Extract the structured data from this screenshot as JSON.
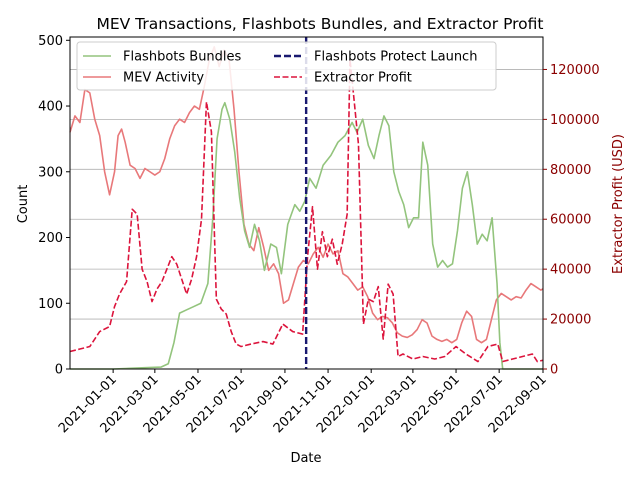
{
  "chart_data": {
    "type": "line",
    "title": "MEV Transactions, Flashbots Bundles, and Extractor Profit",
    "xlabel": "Date",
    "ylabel_left": "Count",
    "ylabel_right": "Extractor Profit (USD)",
    "xlim": [
      "2020-11-01",
      "2022-09-01"
    ],
    "ylim_left": [
      0,
      505
    ],
    "ylim_right": [
      0,
      133000
    ],
    "x_ticks": [
      "2021-01-01",
      "2021-03-01",
      "2021-05-01",
      "2021-07-01",
      "2021-09-01",
      "2021-11-01",
      "2022-01-01",
      "2022-03-01",
      "2022-05-01",
      "2022-07-01",
      "2022-09-01"
    ],
    "y_ticks_left": [
      "0",
      "100",
      "200",
      "300",
      "400",
      "500"
    ],
    "y_ticks_right": [
      "0",
      "20000",
      "40000",
      "60000",
      "80000",
      "100000",
      "120000"
    ],
    "grid": "horizontal lines at right-axis ticks",
    "legend_position": "top-left",
    "legend_columns": 2,
    "colors": {
      "flashbots_bundles": "#93c47d",
      "mev_activity": "#e8787a",
      "extractor_profit": "#dc143c",
      "launch_line": "#191970",
      "right_axis": "#8b0000",
      "grid": "#b0b0b0"
    },
    "annotations": [
      {
        "type": "vline",
        "name": "Flashbots Protect Launch",
        "x": "2021-10-01",
        "style": "dashed"
      }
    ],
    "series": [
      {
        "name": "Flashbots Bundles",
        "axis": "left",
        "style": "solid",
        "points": [
          [
            "2020-11-01",
            0
          ],
          [
            "2021-01-01",
            0
          ],
          [
            "2021-02-15",
            2
          ],
          [
            "2021-03-10",
            3
          ],
          [
            "2021-03-20",
            8
          ],
          [
            "2021-03-28",
            40
          ],
          [
            "2021-04-05",
            85
          ],
          [
            "2021-04-15",
            90
          ],
          [
            "2021-04-25",
            95
          ],
          [
            "2021-05-05",
            100
          ],
          [
            "2021-05-15",
            130
          ],
          [
            "2021-05-22",
            230
          ],
          [
            "2021-05-28",
            350
          ],
          [
            "2021-06-04",
            395
          ],
          [
            "2021-06-08",
            405
          ],
          [
            "2021-06-15",
            380
          ],
          [
            "2021-06-22",
            330
          ],
          [
            "2021-06-29",
            260
          ],
          [
            "2021-07-06",
            210
          ],
          [
            "2021-07-13",
            185
          ],
          [
            "2021-07-20",
            220
          ],
          [
            "2021-07-27",
            195
          ],
          [
            "2021-08-03",
            150
          ],
          [
            "2021-08-12",
            190
          ],
          [
            "2021-08-20",
            185
          ],
          [
            "2021-08-27",
            145
          ],
          [
            "2021-09-05",
            220
          ],
          [
            "2021-09-15",
            250
          ],
          [
            "2021-09-22",
            240
          ],
          [
            "2021-09-29",
            255
          ],
          [
            "2021-10-06",
            290
          ],
          [
            "2021-10-15",
            275
          ],
          [
            "2021-10-25",
            310
          ],
          [
            "2021-11-05",
            325
          ],
          [
            "2021-11-15",
            345
          ],
          [
            "2021-11-25",
            355
          ],
          [
            "2021-12-05",
            375
          ],
          [
            "2021-12-12",
            360
          ],
          [
            "2021-12-20",
            380
          ],
          [
            "2021-12-28",
            340
          ],
          [
            "2022-01-05",
            320
          ],
          [
            "2022-01-12",
            355
          ],
          [
            "2022-01-19",
            385
          ],
          [
            "2022-01-26",
            370
          ],
          [
            "2022-02-02",
            300
          ],
          [
            "2022-02-09",
            270
          ],
          [
            "2022-02-16",
            250
          ],
          [
            "2022-02-23",
            215
          ],
          [
            "2022-03-02",
            230
          ],
          [
            "2022-03-09",
            230
          ],
          [
            "2022-03-15",
            345
          ],
          [
            "2022-03-22",
            310
          ],
          [
            "2022-03-29",
            190
          ],
          [
            "2022-04-05",
            155
          ],
          [
            "2022-04-12",
            165
          ],
          [
            "2022-04-19",
            155
          ],
          [
            "2022-04-26",
            160
          ],
          [
            "2022-05-03",
            210
          ],
          [
            "2022-05-10",
            275
          ],
          [
            "2022-05-17",
            300
          ],
          [
            "2022-05-24",
            250
          ],
          [
            "2022-05-31",
            190
          ],
          [
            "2022-06-07",
            205
          ],
          [
            "2022-06-14",
            195
          ],
          [
            "2022-06-21",
            230
          ],
          [
            "2022-06-28",
            130
          ],
          [
            "2022-07-02",
            40
          ],
          [
            "2022-07-06",
            0
          ],
          [
            "2022-09-01",
            0
          ]
        ]
      },
      {
        "name": "MEV Activity",
        "axis": "left",
        "style": "solid",
        "points": [
          [
            "2020-11-01",
            360
          ],
          [
            "2020-11-08",
            385
          ],
          [
            "2020-11-15",
            375
          ],
          [
            "2020-11-22",
            425
          ],
          [
            "2020-11-29",
            420
          ],
          [
            "2020-12-06",
            380
          ],
          [
            "2020-12-13",
            355
          ],
          [
            "2020-12-20",
            300
          ],
          [
            "2020-12-27",
            265
          ],
          [
            "2021-01-03",
            300
          ],
          [
            "2021-01-08",
            355
          ],
          [
            "2021-01-13",
            365
          ],
          [
            "2021-01-18",
            345
          ],
          [
            "2021-01-25",
            310
          ],
          [
            "2021-02-01",
            305
          ],
          [
            "2021-02-08",
            290
          ],
          [
            "2021-02-15",
            305
          ],
          [
            "2021-02-22",
            300
          ],
          [
            "2021-03-01",
            295
          ],
          [
            "2021-03-08",
            300
          ],
          [
            "2021-03-15",
            320
          ],
          [
            "2021-03-22",
            350
          ],
          [
            "2021-03-29",
            370
          ],
          [
            "2021-04-05",
            380
          ],
          [
            "2021-04-12",
            375
          ],
          [
            "2021-04-19",
            390
          ],
          [
            "2021-04-26",
            400
          ],
          [
            "2021-05-03",
            395
          ],
          [
            "2021-05-10",
            430
          ],
          [
            "2021-05-17",
            470
          ],
          [
            "2021-05-24",
            490
          ],
          [
            "2021-05-31",
            460
          ],
          [
            "2021-06-07",
            485
          ],
          [
            "2021-06-14",
            470
          ],
          [
            "2021-06-21",
            395
          ],
          [
            "2021-06-28",
            300
          ],
          [
            "2021-07-05",
            220
          ],
          [
            "2021-07-12",
            190
          ],
          [
            "2021-07-19",
            180
          ],
          [
            "2021-07-26",
            215
          ],
          [
            "2021-08-02",
            185
          ],
          [
            "2021-08-09",
            150
          ],
          [
            "2021-08-16",
            160
          ],
          [
            "2021-08-23",
            145
          ],
          [
            "2021-08-30",
            100
          ],
          [
            "2021-09-06",
            105
          ],
          [
            "2021-09-13",
            130
          ],
          [
            "2021-09-20",
            155
          ],
          [
            "2021-09-27",
            165
          ],
          [
            "2021-10-04",
            160
          ],
          [
            "2021-10-11",
            175
          ],
          [
            "2021-10-18",
            185
          ],
          [
            "2021-10-25",
            170
          ],
          [
            "2021-11-01",
            190
          ],
          [
            "2021-11-08",
            175
          ],
          [
            "2021-11-15",
            180
          ],
          [
            "2021-11-22",
            145
          ],
          [
            "2021-11-29",
            140
          ],
          [
            "2021-12-06",
            130
          ],
          [
            "2021-12-13",
            120
          ],
          [
            "2021-12-20",
            125
          ],
          [
            "2021-12-27",
            110
          ],
          [
            "2022-01-03",
            85
          ],
          [
            "2022-01-10",
            75
          ],
          [
            "2022-01-17",
            80
          ],
          [
            "2022-01-24",
            78
          ],
          [
            "2022-01-31",
            70
          ],
          [
            "2022-02-07",
            55
          ],
          [
            "2022-02-14",
            50
          ],
          [
            "2022-02-21",
            48
          ],
          [
            "2022-02-28",
            52
          ],
          [
            "2022-03-07",
            60
          ],
          [
            "2022-03-14",
            75
          ],
          [
            "2022-03-21",
            70
          ],
          [
            "2022-03-28",
            50
          ],
          [
            "2022-04-04",
            45
          ],
          [
            "2022-04-11",
            42
          ],
          [
            "2022-04-18",
            45
          ],
          [
            "2022-04-25",
            40
          ],
          [
            "2022-05-02",
            45
          ],
          [
            "2022-05-09",
            70
          ],
          [
            "2022-05-16",
            88
          ],
          [
            "2022-05-23",
            80
          ],
          [
            "2022-05-30",
            45
          ],
          [
            "2022-06-06",
            40
          ],
          [
            "2022-06-13",
            45
          ],
          [
            "2022-06-20",
            75
          ],
          [
            "2022-06-27",
            105
          ],
          [
            "2022-07-04",
            115
          ],
          [
            "2022-07-11",
            110
          ],
          [
            "2022-07-18",
            105
          ],
          [
            "2022-07-25",
            110
          ],
          [
            "2022-08-01",
            108
          ],
          [
            "2022-08-08",
            120
          ],
          [
            "2022-08-15",
            130
          ],
          [
            "2022-08-22",
            125
          ],
          [
            "2022-08-29",
            120
          ],
          [
            "2022-09-01",
            122
          ]
        ]
      },
      {
        "name": "Extractor Profit",
        "axis": "right",
        "style": "dashed",
        "points": [
          [
            "2020-11-01",
            7000
          ],
          [
            "2020-11-15",
            8000
          ],
          [
            "2020-11-29",
            9000
          ],
          [
            "2020-12-13",
            15000
          ],
          [
            "2020-12-27",
            17000
          ],
          [
            "2021-01-03",
            25000
          ],
          [
            "2021-01-10",
            30000
          ],
          [
            "2021-01-20",
            35000
          ],
          [
            "2021-01-28",
            64000
          ],
          [
            "2021-02-04",
            62000
          ],
          [
            "2021-02-11",
            40000
          ],
          [
            "2021-02-18",
            35000
          ],
          [
            "2021-02-25",
            27000
          ],
          [
            "2021-03-04",
            32000
          ],
          [
            "2021-03-11",
            35000
          ],
          [
            "2021-03-18",
            40000
          ],
          [
            "2021-03-25",
            45000
          ],
          [
            "2021-04-01",
            42000
          ],
          [
            "2021-04-08",
            36000
          ],
          [
            "2021-04-15",
            30000
          ],
          [
            "2021-04-22",
            36000
          ],
          [
            "2021-04-29",
            45000
          ],
          [
            "2021-05-06",
            60000
          ],
          [
            "2021-05-13",
            107000
          ],
          [
            "2021-05-20",
            95000
          ],
          [
            "2021-05-27",
            28000
          ],
          [
            "2021-06-03",
            24000
          ],
          [
            "2021-06-10",
            22000
          ],
          [
            "2021-06-17",
            15000
          ],
          [
            "2021-06-24",
            10000
          ],
          [
            "2021-07-01",
            9000
          ],
          [
            "2021-07-15",
            10000
          ],
          [
            "2021-08-01",
            11000
          ],
          [
            "2021-08-15",
            10000
          ],
          [
            "2021-08-29",
            18000
          ],
          [
            "2021-09-12",
            15000
          ],
          [
            "2021-09-26",
            14000
          ],
          [
            "2021-10-03",
            45000
          ],
          [
            "2021-10-10",
            65000
          ],
          [
            "2021-10-17",
            40000
          ],
          [
            "2021-10-24",
            55000
          ],
          [
            "2021-10-31",
            45000
          ],
          [
            "2021-11-07",
            52000
          ],
          [
            "2021-11-14",
            42000
          ],
          [
            "2021-11-21",
            50000
          ],
          [
            "2021-11-28",
            62000
          ],
          [
            "2021-12-02",
            124000
          ],
          [
            "2021-12-07",
            110000
          ],
          [
            "2021-12-14",
            90000
          ],
          [
            "2021-12-21",
            18000
          ],
          [
            "2021-12-28",
            28000
          ],
          [
            "2022-01-04",
            27000
          ],
          [
            "2022-01-11",
            33000
          ],
          [
            "2022-01-18",
            12000
          ],
          [
            "2022-01-25",
            34000
          ],
          [
            "2022-02-01",
            30000
          ],
          [
            "2022-02-08",
            5000
          ],
          [
            "2022-02-15",
            6000
          ],
          [
            "2022-03-01",
            4000
          ],
          [
            "2022-03-15",
            5000
          ],
          [
            "2022-04-01",
            4000
          ],
          [
            "2022-04-15",
            5000
          ],
          [
            "2022-05-01",
            9000
          ],
          [
            "2022-05-15",
            6000
          ],
          [
            "2022-06-01",
            3000
          ],
          [
            "2022-06-15",
            9000
          ],
          [
            "2022-06-29",
            10000
          ],
          [
            "2022-07-06",
            3000
          ],
          [
            "2022-07-20",
            4000
          ],
          [
            "2022-08-03",
            5000
          ],
          [
            "2022-08-17",
            6000
          ],
          [
            "2022-08-24",
            3000
          ],
          [
            "2022-09-01",
            3500
          ]
        ]
      }
    ],
    "legend": [
      {
        "label": "Flashbots Bundles",
        "series": "flashbots_bundles",
        "style": "solid"
      },
      {
        "label": "MEV Activity",
        "series": "mev_activity",
        "style": "solid"
      },
      {
        "label": "Flashbots Protect Launch",
        "series": "launch_line",
        "style": "dashed"
      },
      {
        "label": "Extractor Profit",
        "series": "extractor_profit",
        "style": "dashed"
      }
    ]
  }
}
